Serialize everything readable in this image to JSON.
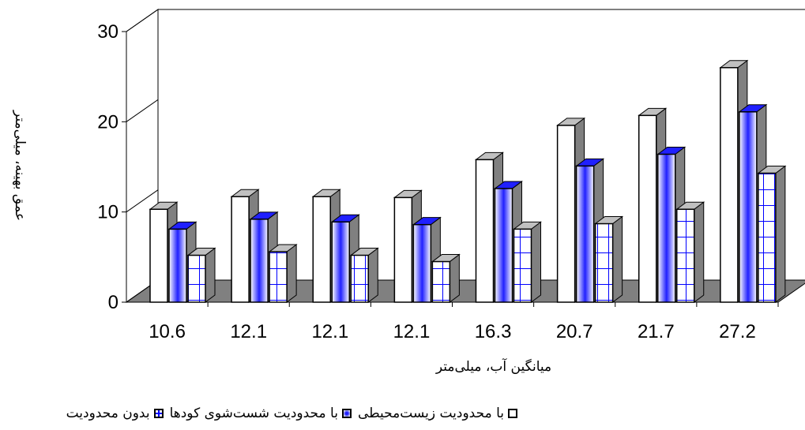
{
  "chart_data": {
    "type": "bar3d",
    "x_label": "میانگین آب، میلی‌متر",
    "y_label": "عمق بهینه، میلی‌متر",
    "categories": [
      "10.6",
      "12.1",
      "12.1",
      "12.1",
      "16.3",
      "20.7",
      "21.7",
      "27.2"
    ],
    "series": [
      {
        "name": "با محدودیت زیست‌محیطی",
        "color": "#ffffff",
        "fill": "solid",
        "values": [
          10.3,
          11.7,
          11.7,
          11.6,
          15.8,
          19.6,
          20.7,
          26.0
        ]
      },
      {
        "name": "با محدودیت شست‌شوی کودها",
        "color": "#2020ff",
        "fill": "gradient",
        "values": [
          8.1,
          9.2,
          8.9,
          8.6,
          12.6,
          15.1,
          16.4,
          21.1
        ]
      },
      {
        "name": "بدون محدودیت",
        "color": "#0000ff",
        "fill": "grid",
        "values": [
          5.2,
          5.6,
          5.2,
          4.5,
          8.1,
          8.7,
          10.3,
          14.3
        ]
      }
    ],
    "ylim": [
      0,
      30
    ],
    "yticks": [
      0,
      10,
      20,
      30
    ]
  }
}
